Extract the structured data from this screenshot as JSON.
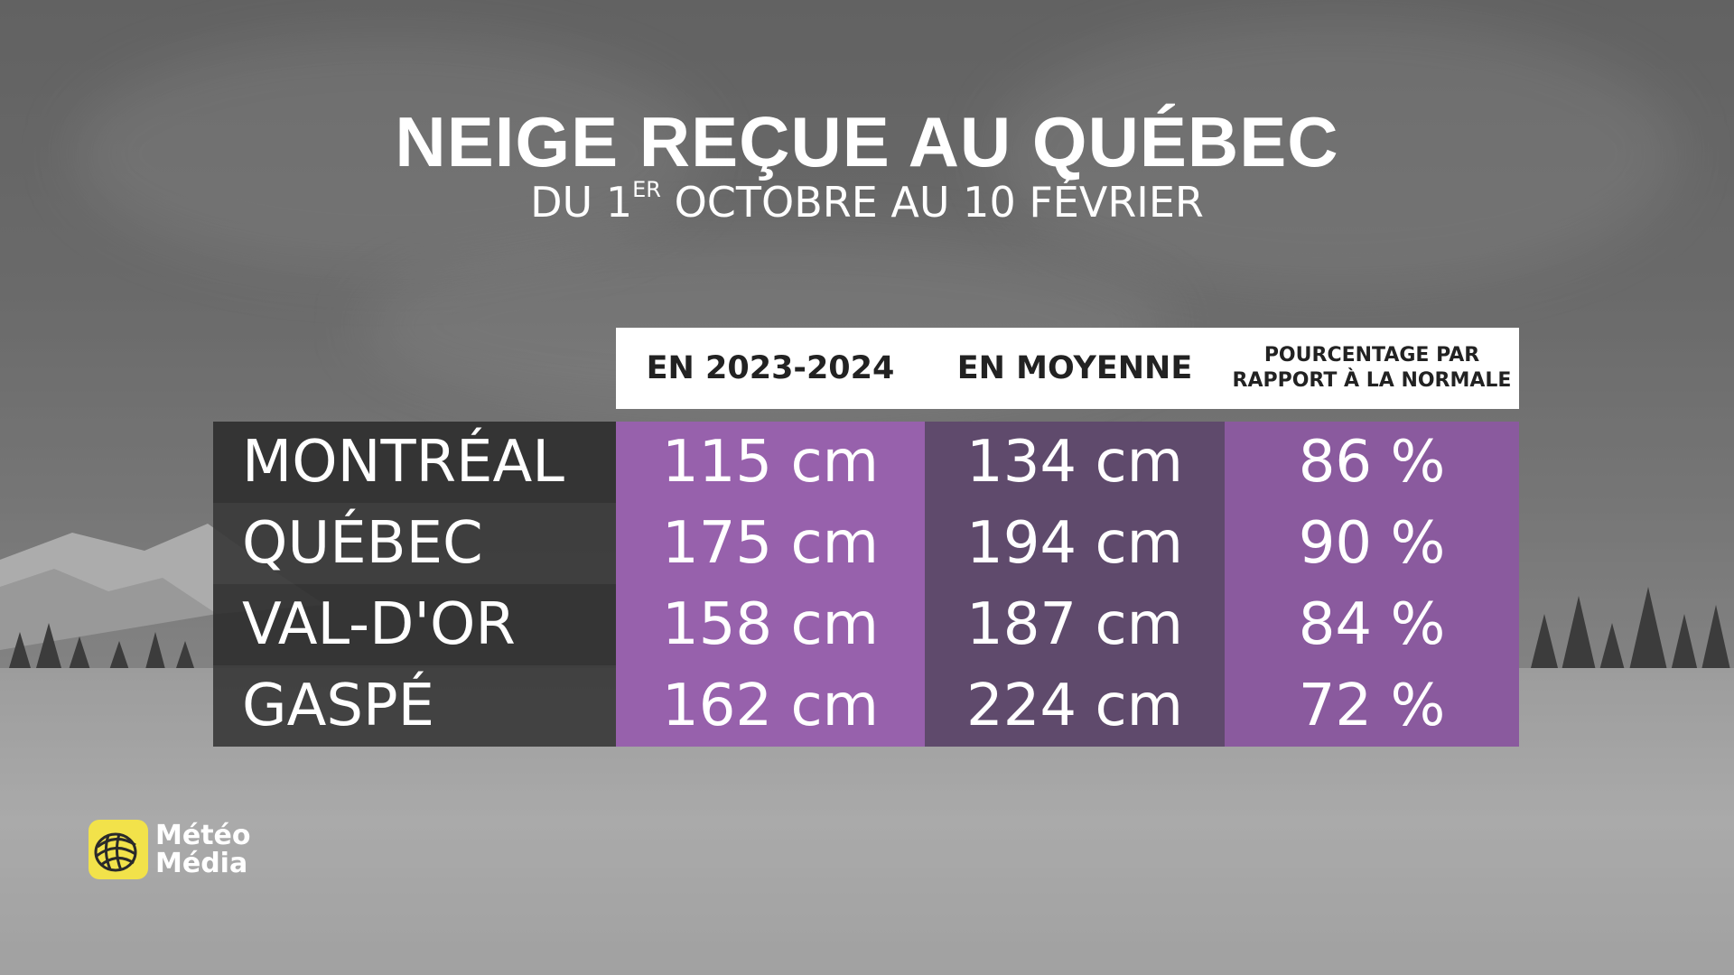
{
  "title": "NEIGE REÇUE AU QUÉBEC",
  "subtitle": {
    "prefix": "DU 1",
    "superscript": "ER",
    "suffix": " OCTOBRE AU 10 FÉVRIER"
  },
  "colors": {
    "col_2023": "#9761ac",
    "col_moyenne": "#5f4a6c",
    "col_pct": "#8a5a9e",
    "logo_accent": "#f2e24a"
  },
  "logo": {
    "icon": "globe-icon",
    "line1": "Météo",
    "line2": "Média"
  },
  "chart_data": {
    "type": "table",
    "columns": [
      "EN 2023-2024",
      "EN MOYENNE",
      "POURCENTAGE PAR RAPPORT À LA NORMALE"
    ],
    "header_pct_lines": [
      "POURCENTAGE PAR",
      "RAPPORT À LA NORMALE"
    ],
    "rows": [
      {
        "city": "MONTRÉAL",
        "season": "115 cm",
        "average": "134 cm",
        "percent": "86 %"
      },
      {
        "city": "QUÉBEC",
        "season": "175 cm",
        "average": "194 cm",
        "percent": "90 %"
      },
      {
        "city": "VAL-D'OR",
        "season": "158 cm",
        "average": "187 cm",
        "percent": "84 %"
      },
      {
        "city": "GASPÉ",
        "season": "162 cm",
        "average": "224 cm",
        "percent": "72 %"
      }
    ],
    "values": {
      "season_cm": [
        115,
        175,
        158,
        162
      ],
      "average_cm": [
        134,
        194,
        187,
        224
      ],
      "percent_of_normal": [
        86,
        90,
        84,
        72
      ]
    }
  }
}
